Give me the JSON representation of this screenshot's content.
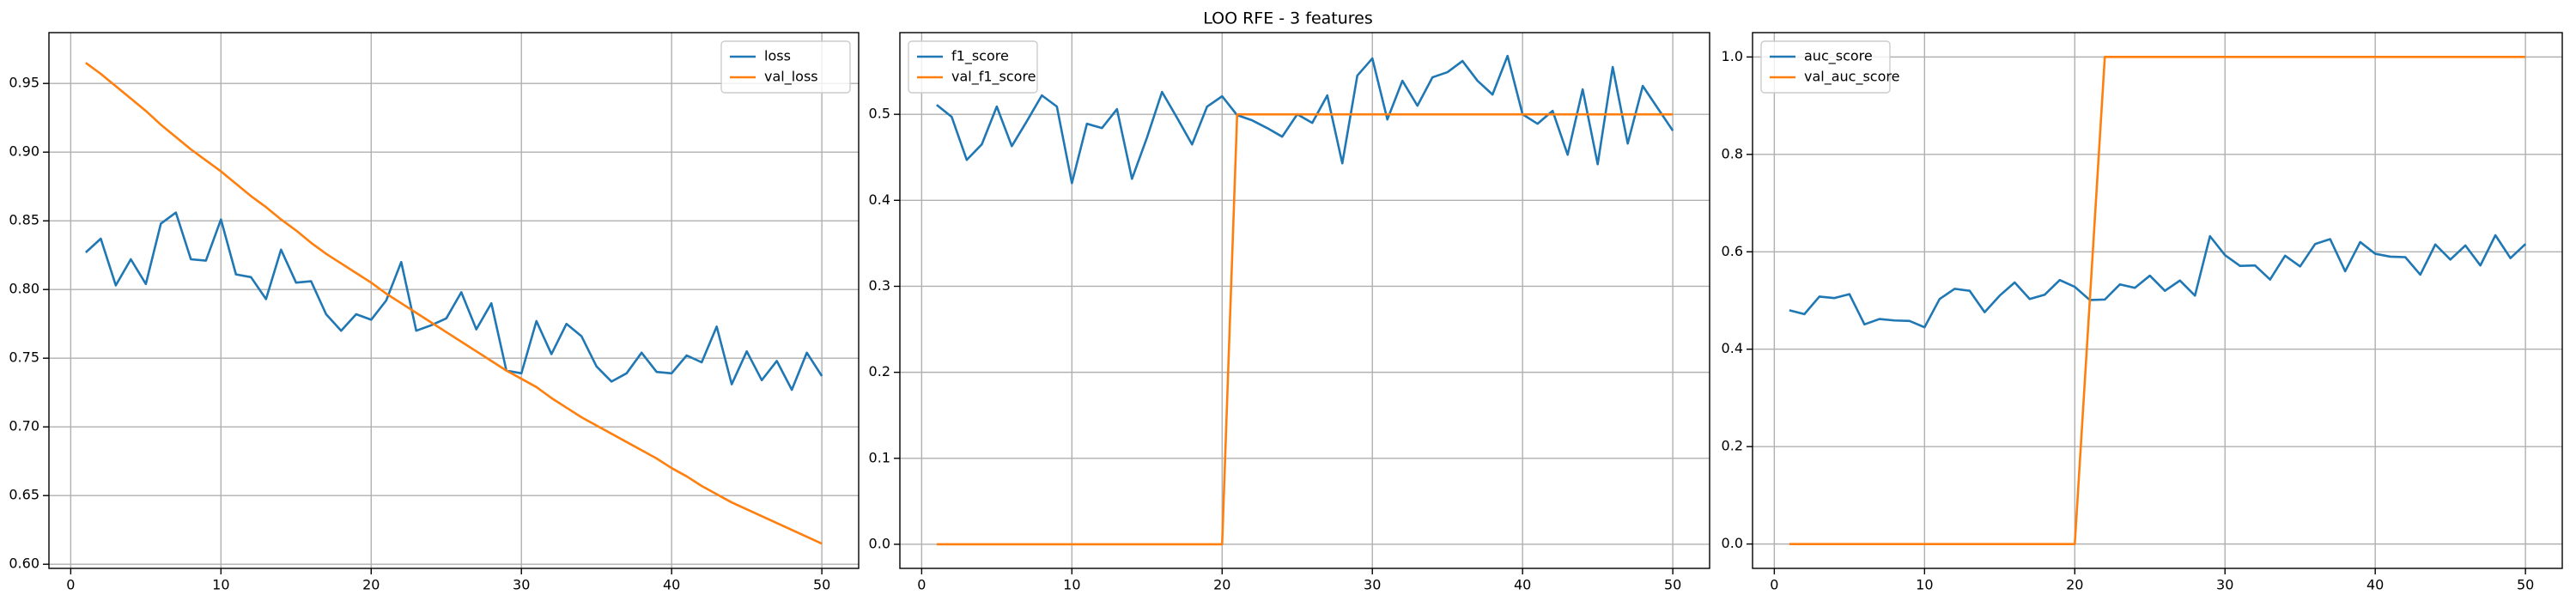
{
  "title": "LOO RFE - 3 features",
  "chart_data": [
    {
      "type": "line",
      "x": [
        1,
        2,
        3,
        4,
        5,
        6,
        7,
        8,
        9,
        10,
        11,
        12,
        13,
        14,
        15,
        16,
        17,
        18,
        19,
        20,
        21,
        22,
        23,
        24,
        25,
        26,
        27,
        28,
        29,
        30,
        31,
        32,
        33,
        34,
        35,
        36,
        37,
        38,
        39,
        40,
        41,
        42,
        43,
        44,
        45,
        46,
        47,
        48,
        49,
        50
      ],
      "series": [
        {
          "name": "loss",
          "color": "#1f77b4",
          "values": [
            0.827,
            0.837,
            0.803,
            0.822,
            0.804,
            0.848,
            0.856,
            0.822,
            0.821,
            0.851,
            0.811,
            0.809,
            0.793,
            0.829,
            0.805,
            0.806,
            0.782,
            0.77,
            0.782,
            0.778,
            0.792,
            0.82,
            0.77,
            0.774,
            0.779,
            0.798,
            0.771,
            0.79,
            0.741,
            0.739,
            0.777,
            0.753,
            0.775,
            0.766,
            0.744,
            0.733,
            0.739,
            0.754,
            0.74,
            0.739,
            0.752,
            0.747,
            0.773,
            0.731,
            0.755,
            0.734,
            0.748,
            0.727,
            0.754,
            0.737
          ]
        },
        {
          "name": "val_loss",
          "color": "#ff7f0e",
          "values": [
            0.965,
            0.957,
            0.948,
            0.939,
            0.93,
            0.92,
            0.911,
            0.902,
            0.894,
            0.886,
            0.877,
            0.868,
            0.86,
            0.851,
            0.843,
            0.834,
            0.826,
            0.819,
            0.812,
            0.805,
            0.797,
            0.79,
            0.783,
            0.776,
            0.769,
            0.762,
            0.755,
            0.748,
            0.741,
            0.735,
            0.729,
            0.721,
            0.714,
            0.707,
            0.701,
            0.695,
            0.689,
            0.683,
            0.677,
            0.67,
            0.664,
            0.657,
            0.651,
            0.645,
            0.64,
            0.635,
            0.63,
            0.625,
            0.62,
            0.615
          ]
        }
      ],
      "xlim": [
        -1.45,
        52.45
      ],
      "xticks": [
        0,
        10,
        20,
        30,
        40,
        50
      ],
      "ylim": [
        0.597,
        0.987
      ],
      "yticks": [
        {
          "value": 0.6,
          "label": "0.60"
        },
        0.65,
        {
          "value": 0.7,
          "label": "0.70"
        },
        0.75,
        {
          "value": 0.8,
          "label": "0.80"
        },
        0.85,
        {
          "value": 0.9,
          "label": "0.90"
        },
        0.95
      ],
      "grid": true,
      "legend": "upper right"
    },
    {
      "type": "line",
      "x": [
        1,
        2,
        3,
        4,
        5,
        6,
        7,
        8,
        9,
        10,
        11,
        12,
        13,
        14,
        15,
        16,
        17,
        18,
        19,
        20,
        21,
        22,
        23,
        24,
        25,
        26,
        27,
        28,
        29,
        30,
        31,
        32,
        33,
        34,
        35,
        36,
        37,
        38,
        39,
        40,
        41,
        42,
        43,
        44,
        45,
        46,
        47,
        48,
        49,
        50
      ],
      "series": [
        {
          "name": "f1_score",
          "color": "#1f77b4",
          "values": [
            0.511,
            0.497,
            0.447,
            0.465,
            0.509,
            0.463,
            0.492,
            0.522,
            0.509,
            0.42,
            0.489,
            0.484,
            0.506,
            0.425,
            0.473,
            0.526,
            0.496,
            0.465,
            0.509,
            0.521,
            0.499,
            0.493,
            0.484,
            0.474,
            0.5,
            0.49,
            0.522,
            0.443,
            0.545,
            0.565,
            0.494,
            0.539,
            0.51,
            0.543,
            0.549,
            0.562,
            0.539,
            0.523,
            0.568,
            0.5,
            0.489,
            0.504,
            0.453,
            0.529,
            0.442,
            0.555,
            0.466,
            0.533,
            0.507,
            0.481
          ]
        },
        {
          "name": "val_f1_score",
          "color": "#ff7f0e",
          "values": [
            0,
            0,
            0,
            0,
            0,
            0,
            0,
            0,
            0,
            0,
            0,
            0,
            0,
            0,
            0,
            0,
            0,
            0,
            0,
            0,
            0.5,
            0.5,
            0.5,
            0.5,
            0.5,
            0.5,
            0.5,
            0.5,
            0.5,
            0.5,
            0.5,
            0.5,
            0.5,
            0.5,
            0.5,
            0.5,
            0.5,
            0.5,
            0.5,
            0.5,
            0.5,
            0.5,
            0.5,
            0.5,
            0.5,
            0.5,
            0.5,
            0.5,
            0.5,
            0.5
          ]
        }
      ],
      "xlim": [
        -1.45,
        52.45
      ],
      "xticks": [
        0,
        10,
        20,
        30,
        40,
        50
      ],
      "ylim": [
        -0.028,
        0.595
      ],
      "yticks": [
        {
          "value": 0,
          "label": "0.0"
        },
        0.1,
        0.2,
        0.3,
        0.4,
        0.5
      ],
      "grid": true,
      "legend": "upper left"
    },
    {
      "type": "line",
      "x": [
        1,
        2,
        3,
        4,
        5,
        6,
        7,
        8,
        9,
        10,
        11,
        12,
        13,
        14,
        15,
        16,
        17,
        18,
        19,
        20,
        21,
        22,
        23,
        24,
        25,
        26,
        27,
        28,
        29,
        30,
        31,
        32,
        33,
        34,
        35,
        36,
        37,
        38,
        39,
        40,
        41,
        42,
        43,
        44,
        45,
        46,
        47,
        48,
        49,
        50
      ],
      "series": [
        {
          "name": "auc_score",
          "color": "#1f77b4",
          "values": [
            0.48,
            0.472,
            0.508,
            0.505,
            0.513,
            0.451,
            0.462,
            0.459,
            0.458,
            0.445,
            0.503,
            0.524,
            0.52,
            0.476,
            0.51,
            0.537,
            0.503,
            0.512,
            0.542,
            0.528,
            0.501,
            0.502,
            0.533,
            0.526,
            0.551,
            0.52,
            0.541,
            0.51,
            0.632,
            0.593,
            0.571,
            0.572,
            0.543,
            0.592,
            0.57,
            0.616,
            0.626,
            0.56,
            0.62,
            0.596,
            0.59,
            0.589,
            0.553,
            0.615,
            0.584,
            0.613,
            0.572,
            0.634,
            0.587,
            0.616
          ]
        },
        {
          "name": "val_auc_score",
          "color": "#ff7f0e",
          "values": [
            0,
            0,
            0,
            0,
            0,
            0,
            0,
            0,
            0,
            0,
            0,
            0,
            0,
            0,
            0,
            0,
            0,
            0,
            0,
            0,
            0.5,
            1,
            1,
            1,
            1,
            1,
            1,
            1,
            1,
            1,
            1,
            1,
            1,
            1,
            1,
            1,
            1,
            1,
            1,
            1,
            1,
            1,
            1,
            1,
            1,
            1,
            1,
            1,
            1,
            1
          ]
        }
      ],
      "xlim": [
        -1.45,
        52.45
      ],
      "xticks": [
        0,
        10,
        20,
        30,
        40,
        50
      ],
      "ylim": [
        -0.05,
        1.05
      ],
      "yticks": [
        {
          "value": 0,
          "label": "0.0"
        },
        0.2,
        0.4,
        0.6,
        0.8,
        {
          "value": 1,
          "label": "1.0"
        }
      ],
      "grid": true,
      "legend": "upper left"
    }
  ]
}
